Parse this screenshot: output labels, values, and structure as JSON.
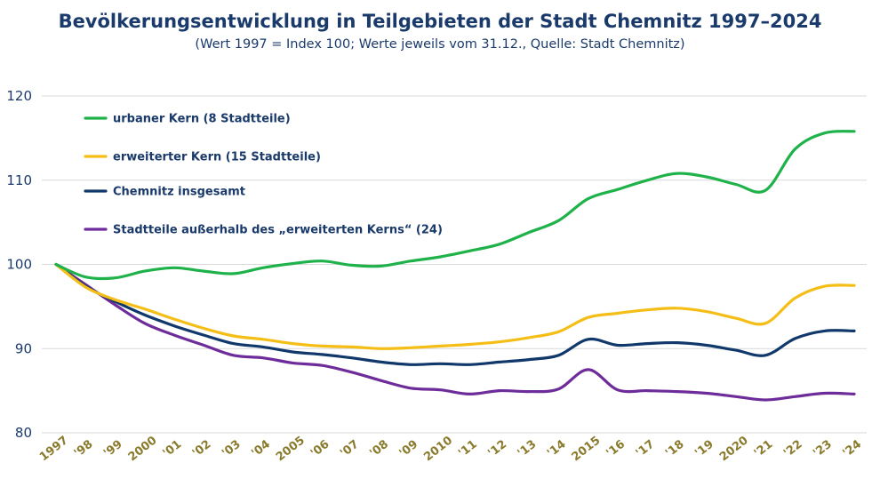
{
  "chart_data": {
    "type": "line",
    "title": "Bevölkerungsentwicklung in Teilgebieten der Stadt Chemnitz 1997–2024",
    "subtitle": "(Wert 1997 = Index 100; Werte jeweils vom 31.12., Quelle: Stadt Chemnitz)",
    "ylim": [
      80,
      120
    ],
    "yticks": [
      80,
      90,
      100,
      110,
      120
    ],
    "grid": true,
    "legend_position": "top-left",
    "x_tick_labels": [
      "1997",
      "'98",
      "'99",
      "2000",
      "'01",
      "'02",
      "'03",
      "'04",
      "2005",
      "'06",
      "'07",
      "'08",
      "'09",
      "2010",
      "'11",
      "'12",
      "'13",
      "'14",
      "2015",
      "'16",
      "'17",
      "'18",
      "'19",
      "2020",
      "'21",
      "'22",
      "'23",
      "'24"
    ],
    "x": [
      1997,
      1998,
      1999,
      2000,
      2001,
      2002,
      2003,
      2004,
      2005,
      2006,
      2007,
      2008,
      2009,
      2010,
      2011,
      2012,
      2013,
      2014,
      2015,
      2016,
      2017,
      2018,
      2019,
      2020,
      2021,
      2022,
      2023,
      2024
    ],
    "series": [
      {
        "name": "urbaner Kern (8 Stadtteile)",
        "color": "#1fb24a",
        "values": [
          100.0,
          98.5,
          98.4,
          99.2,
          99.6,
          99.2,
          98.9,
          99.6,
          100.1,
          100.4,
          99.9,
          99.8,
          100.4,
          100.9,
          101.6,
          102.4,
          103.8,
          105.2,
          107.8,
          108.9,
          110.0,
          110.8,
          110.4,
          109.5,
          108.8,
          113.7,
          115.6,
          115.8
        ]
      },
      {
        "name": "erweiterter Kern (15 Stadtteile)",
        "color": "#f5be17",
        "values": [
          100.0,
          97.3,
          95.8,
          94.7,
          93.5,
          92.4,
          91.5,
          91.1,
          90.6,
          90.3,
          90.2,
          90.0,
          90.1,
          90.3,
          90.5,
          90.8,
          91.3,
          92.0,
          93.7,
          94.2,
          94.6,
          94.8,
          94.4,
          93.6,
          93.0,
          96.0,
          97.4,
          97.5
        ]
      },
      {
        "name": "Chemnitz insgesamt",
        "color": "#10386b",
        "values": [
          100.0,
          97.4,
          95.6,
          94.0,
          92.7,
          91.6,
          90.6,
          90.2,
          89.6,
          89.3,
          88.9,
          88.4,
          88.1,
          88.2,
          88.1,
          88.4,
          88.7,
          89.2,
          91.1,
          90.4,
          90.6,
          90.7,
          90.4,
          89.8,
          89.2,
          91.2,
          92.1,
          92.1
        ]
      },
      {
        "name": "Stadtteile außerhalb des „erweiterten Kerns“ (24)",
        "color": "#6e2c9b",
        "values": [
          100.0,
          97.6,
          95.2,
          93.0,
          91.6,
          90.4,
          89.2,
          88.9,
          88.3,
          88.0,
          87.2,
          86.2,
          85.3,
          85.1,
          84.6,
          85.0,
          84.9,
          85.2,
          87.5,
          85.1,
          85.0,
          84.9,
          84.7,
          84.3,
          83.9,
          84.3,
          84.7,
          84.6
        ]
      }
    ]
  }
}
